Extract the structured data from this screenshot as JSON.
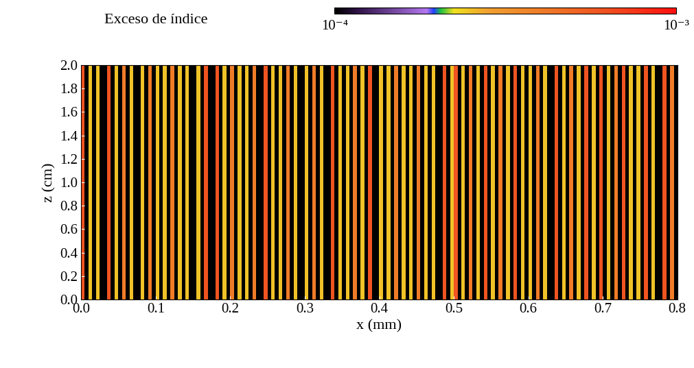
{
  "chart_data": {
    "type": "heatmap",
    "xlabel": "x (mm)",
    "ylabel": "z (cm)",
    "xlim": [
      0.0,
      0.8
    ],
    "ylim": [
      0.0,
      2.0
    ],
    "xticks": [
      0.0,
      0.1,
      0.2,
      0.3,
      0.4,
      0.5,
      0.6,
      0.7,
      0.8
    ],
    "yticks": [
      0.0,
      0.2,
      0.4,
      0.6,
      0.8,
      1.0,
      1.2,
      1.4,
      1.6,
      1.8,
      2.0
    ],
    "cells": [
      [
        0.0006,
        5e-05,
        0.00025,
        5e-05,
        0.00025,
        5e-05,
        5e-05,
        0.0006,
        5e-05,
        0.00025,
        5e-05,
        0.0004,
        5e-05,
        0.00025,
        5e-05,
        5e-05,
        0.00025,
        5e-05,
        0.0004,
        5e-05,
        0.00025,
        5e-05,
        0.00025,
        5e-05,
        0.0004,
        5e-05,
        0.00025,
        5e-05,
        0.00025,
        5e-05,
        5e-05,
        0.00025,
        5e-05,
        0.0006,
        5e-05,
        5e-05,
        0.0006,
        5e-05,
        0.00025,
        5e-05,
        0.0004,
        5e-05,
        0.00025,
        5e-05,
        0.00025,
        5e-05,
        0.0004,
        5e-05,
        5e-05,
        0.0006,
        5e-05,
        0.00025,
        5e-05,
        0.00025,
        5e-05,
        0.0004,
        5e-05,
        0.00025,
        5e-05,
        5e-05,
        0.00025,
        5e-05,
        0.0004,
        5e-05,
        0.00025,
        5e-05,
        5e-05,
        0.0006,
        5e-05,
        0.00025,
        5e-05,
        0.00025,
        5e-05,
        0.0004,
        5e-05,
        0.00025,
        5e-05,
        0.0006,
        5e-05,
        5e-05,
        0.00025,
        5e-05,
        0.00025,
        5e-05,
        0.0004,
        5e-05,
        0.00025,
        5e-05,
        0.00025,
        5e-05,
        0.0004,
        5e-05,
        0.00025,
        5e-05,
        0.00025,
        5e-05,
        5e-05,
        0.0006,
        5e-05,
        0.00025,
        0.0006,
        5e-05,
        0.00025,
        5e-05,
        0.0004,
        5e-05,
        0.00025,
        5e-05,
        0.0006,
        5e-05,
        0.00025,
        5e-05,
        0.0004,
        5e-05,
        0.00025,
        5e-05,
        0.0006,
        5e-05,
        0.00025,
        5e-05,
        0.00025,
        5e-05,
        0.0004,
        5e-05,
        0.00025,
        5e-05,
        5e-05,
        0.0006,
        5e-05,
        0.00025,
        5e-05,
        0.0004,
        5e-05,
        0.00025,
        5e-05,
        0.0006,
        5e-05,
        0.00025,
        5e-05,
        0.0006,
        5e-05,
        0.00025,
        5e-05,
        0.0004,
        5e-05,
        0.0006,
        5e-05,
        0.00025,
        5e-05,
        0.00025,
        5e-05,
        0.0006,
        5e-05,
        0.00025,
        5e-05,
        5e-05,
        0.0006,
        5e-05,
        0.0004,
        5e-05
      ]
    ],
    "colorbar": {
      "label": "Exceso de índice",
      "lim": [
        0.0001,
        0.001
      ],
      "log": true,
      "ticks": [
        {
          "value": 0.0001,
          "label": "10⁻⁴"
        },
        {
          "value": 0.001,
          "label": "10⁻³"
        }
      ]
    }
  }
}
